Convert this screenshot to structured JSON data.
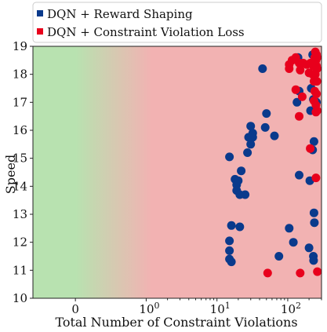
{
  "chart_data": {
    "type": "scatter",
    "xlabel": "Total Number of Constraint Violations",
    "ylabel": "Speed",
    "x_scale": "symlog",
    "xlim": [
      -0.6,
      300
    ],
    "ylim": [
      10,
      19
    ],
    "x_ticks": [
      {
        "value": 0,
        "label": "0"
      },
      {
        "value": 1,
        "label": "10^0"
      },
      {
        "value": 10,
        "label": "10^1"
      },
      {
        "value": 100,
        "label": "10^2"
      }
    ],
    "y_ticks": [
      10,
      11,
      12,
      13,
      14,
      15,
      16,
      17,
      18,
      19
    ],
    "background": {
      "safe_color": "#b8e2b0",
      "violation_color": "#f2b2b2",
      "transition": [
        0,
        1.2
      ]
    },
    "legend": {
      "position": "top"
    },
    "series": [
      {
        "name": "DQN + Reward Shaping",
        "color": "#0a3a8c",
        "points": [
          [
            44,
            18.2
          ],
          [
            140,
            18.6
          ],
          [
            225,
            18.7
          ],
          [
            240,
            18.6
          ],
          [
            145,
            17.4
          ],
          [
            135,
            17.0
          ],
          [
            215,
            17.5
          ],
          [
            230,
            17.1
          ],
          [
            255,
            17.0
          ],
          [
            210,
            16.7
          ],
          [
            245,
            16.7
          ],
          [
            50,
            16.6
          ],
          [
            30,
            16.15
          ],
          [
            48,
            16.1
          ],
          [
            32,
            15.9
          ],
          [
            28,
            15.75
          ],
          [
            32,
            15.75
          ],
          [
            30,
            15.5
          ],
          [
            65,
            15.8
          ],
          [
            235,
            15.6
          ],
          [
            225,
            15.3
          ],
          [
            27,
            15.2
          ],
          [
            15,
            15.05
          ],
          [
            22,
            14.55
          ],
          [
            18,
            14.25
          ],
          [
            20,
            14.2
          ],
          [
            19,
            14.05
          ],
          [
            19,
            13.85
          ],
          [
            21,
            13.7
          ],
          [
            25,
            13.7
          ],
          [
            145,
            14.4
          ],
          [
            205,
            14.2
          ],
          [
            235,
            13.05
          ],
          [
            238,
            12.7
          ],
          [
            16,
            12.6
          ],
          [
            21,
            12.55
          ],
          [
            105,
            12.5
          ],
          [
            15,
            12.05
          ],
          [
            15,
            11.7
          ],
          [
            120,
            12.0
          ],
          [
            200,
            11.8
          ],
          [
            230,
            11.5
          ],
          [
            232,
            11.35
          ],
          [
            75,
            11.5
          ],
          [
            15,
            11.4
          ],
          [
            16,
            11.3
          ]
        ]
      },
      {
        "name": "DQN + Constraint Violation Loss",
        "color": "#e8001c",
        "points": [
          [
            245,
            18.8
          ],
          [
            255,
            18.7
          ],
          [
            240,
            18.6
          ],
          [
            260,
            18.6
          ],
          [
            250,
            18.5
          ],
          [
            130,
            18.6
          ],
          [
            115,
            18.5
          ],
          [
            105,
            18.35
          ],
          [
            145,
            18.4
          ],
          [
            165,
            18.4
          ],
          [
            185,
            18.35
          ],
          [
            210,
            18.4
          ],
          [
            230,
            18.3
          ],
          [
            255,
            18.3
          ],
          [
            260,
            18.2
          ],
          [
            105,
            18.2
          ],
          [
            150,
            18.15
          ],
          [
            200,
            18.05
          ],
          [
            225,
            18.0
          ],
          [
            245,
            18.0
          ],
          [
            235,
            17.75
          ],
          [
            258,
            17.75
          ],
          [
            130,
            17.45
          ],
          [
            240,
            17.4
          ],
          [
            255,
            17.3
          ],
          [
            160,
            17.2
          ],
          [
            235,
            17.05
          ],
          [
            250,
            16.9
          ],
          [
            260,
            16.7
          ],
          [
            250,
            16.65
          ],
          [
            145,
            16.5
          ],
          [
            208,
            15.35
          ],
          [
            250,
            14.3
          ],
          [
            52,
            10.9
          ],
          [
            150,
            10.9
          ],
          [
            262,
            10.95
          ]
        ]
      }
    ]
  }
}
